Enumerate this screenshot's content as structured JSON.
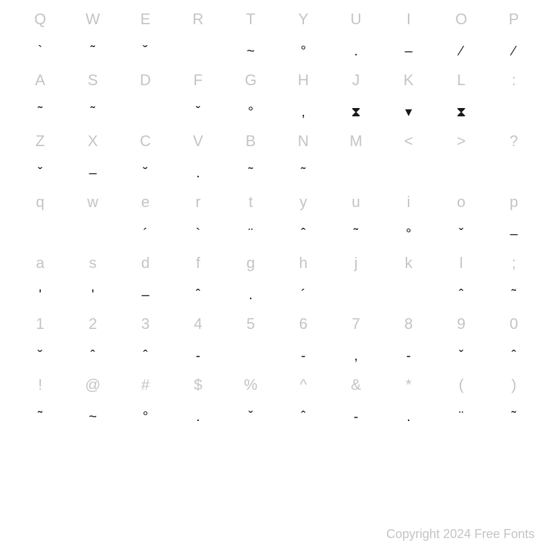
{
  "label_color": "#c4c4c4",
  "glyph_color": "#1a1a1a",
  "background_color": "#ffffff",
  "label_fontsize": 22,
  "glyph_fontsize": 20,
  "rows": [
    [
      {
        "label": "Q",
        "glyph": "`"
      },
      {
        "label": "W",
        "glyph": "˜"
      },
      {
        "label": "E",
        "glyph": "˘"
      },
      {
        "label": "R",
        "glyph": ""
      },
      {
        "label": "T",
        "glyph": "~"
      },
      {
        "label": "Y",
        "glyph": "°"
      },
      {
        "label": "U",
        "glyph": "."
      },
      {
        "label": "I",
        "glyph": "–"
      },
      {
        "label": "O",
        "glyph": "∕"
      },
      {
        "label": "P",
        "glyph": "∕"
      }
    ],
    [
      {
        "label": "A",
        "glyph": "˜"
      },
      {
        "label": "S",
        "glyph": "˜"
      },
      {
        "label": "D",
        "glyph": ""
      },
      {
        "label": "F",
        "glyph": "ˇ"
      },
      {
        "label": "G",
        "glyph": "°"
      },
      {
        "label": "H",
        "glyph": ","
      },
      {
        "label": "J",
        "glyph": "⧗"
      },
      {
        "label": "K",
        "glyph": "▾"
      },
      {
        "label": "L",
        "glyph": "⧗"
      },
      {
        "label": ":",
        "glyph": ""
      }
    ],
    [
      {
        "label": "Z",
        "glyph": "ˇ"
      },
      {
        "label": "X",
        "glyph": "–"
      },
      {
        "label": "C",
        "glyph": "˘"
      },
      {
        "label": "V",
        "glyph": "."
      },
      {
        "label": "B",
        "glyph": "˜"
      },
      {
        "label": "N",
        "glyph": "˜"
      },
      {
        "label": "M",
        "glyph": ""
      },
      {
        "label": "<",
        "glyph": ""
      },
      {
        "label": ">",
        "glyph": ""
      },
      {
        "label": "?",
        "glyph": ""
      }
    ],
    [
      {
        "label": "q",
        "glyph": ""
      },
      {
        "label": "w",
        "glyph": ""
      },
      {
        "label": "e",
        "glyph": "´"
      },
      {
        "label": "r",
        "glyph": "`"
      },
      {
        "label": "t",
        "glyph": "¨"
      },
      {
        "label": "y",
        "glyph": "ˆ"
      },
      {
        "label": "u",
        "glyph": "˜"
      },
      {
        "label": "i",
        "glyph": "°"
      },
      {
        "label": "o",
        "glyph": "ˇ"
      },
      {
        "label": "p",
        "glyph": "–"
      }
    ],
    [
      {
        "label": "a",
        "glyph": "'"
      },
      {
        "label": "s",
        "glyph": "'"
      },
      {
        "label": "d",
        "glyph": "–"
      },
      {
        "label": "f",
        "glyph": "ˆ"
      },
      {
        "label": "g",
        "glyph": "."
      },
      {
        "label": "h",
        "glyph": "´"
      },
      {
        "label": "j",
        "glyph": ""
      },
      {
        "label": "k",
        "glyph": ""
      },
      {
        "label": "l",
        "glyph": "ˆ"
      },
      {
        "label": ";",
        "glyph": "˜"
      }
    ],
    [
      {
        "label": "1",
        "glyph": "˘"
      },
      {
        "label": "2",
        "glyph": "ˆ"
      },
      {
        "label": "3",
        "glyph": "ˆ"
      },
      {
        "label": "4",
        "glyph": "-"
      },
      {
        "label": "5",
        "glyph": ""
      },
      {
        "label": "6",
        "glyph": "-"
      },
      {
        "label": "7",
        "glyph": ","
      },
      {
        "label": "8",
        "glyph": "-"
      },
      {
        "label": "9",
        "glyph": "ˇ"
      },
      {
        "label": "0",
        "glyph": "ˆ"
      }
    ],
    [
      {
        "label": "!",
        "glyph": "˜"
      },
      {
        "label": "@",
        "glyph": "~"
      },
      {
        "label": "#",
        "glyph": "°"
      },
      {
        "label": "$",
        "glyph": "."
      },
      {
        "label": "%",
        "glyph": "ˇ"
      },
      {
        "label": "^",
        "glyph": "ˆ"
      },
      {
        "label": "&",
        "glyph": "-"
      },
      {
        "label": "*",
        "glyph": "."
      },
      {
        "label": "(",
        "glyph": "¨"
      },
      {
        "label": ")",
        "glyph": "˜"
      }
    ]
  ],
  "extra_glyphs": {
    "row0_col10": "‘",
    "row1_col10": "∕",
    "row3_row_prefix_hat": "ˆ",
    "row3_row_prefix_dot": ".",
    "row5_col10": "∕"
  },
  "copyright": "Copyright 2024 Free Fonts"
}
